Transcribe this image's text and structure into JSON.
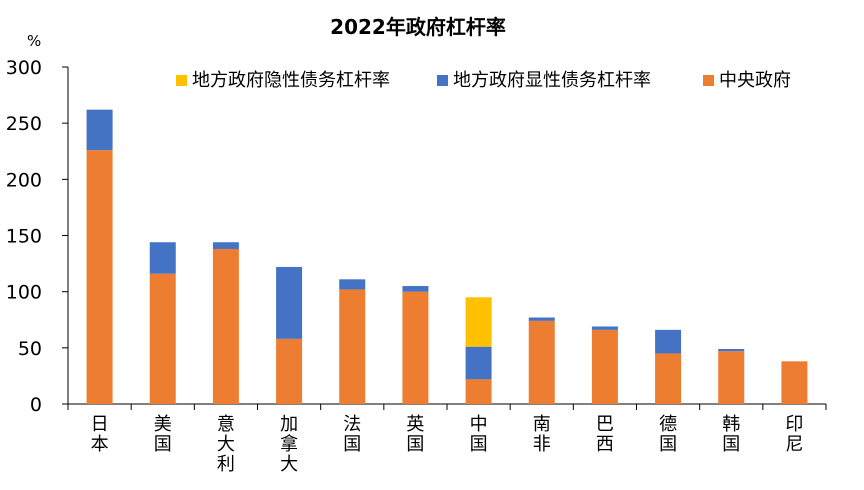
{
  "chart_data": {
    "type": "bar",
    "stacked": true,
    "title": "2022年政府杠杆率",
    "unit_label": "%",
    "ylim": [
      0,
      300
    ],
    "yticks": [
      0,
      50,
      100,
      150,
      200,
      250,
      300
    ],
    "grid": false,
    "legend_position": "top-right",
    "categories": [
      "日本",
      "美国",
      "意大利",
      "加拿大",
      "法国",
      "英国",
      "中国",
      "南非",
      "巴西",
      "德国",
      "韩国",
      "印尼"
    ],
    "series": [
      {
        "name": "中央政府",
        "color": "#ED7D31",
        "values": [
          226,
          116,
          138,
          58,
          102,
          100,
          22,
          74,
          66,
          45,
          47,
          38
        ]
      },
      {
        "name": "地方政府显性债务杠杆率",
        "color": "#4472C4",
        "values": [
          36,
          28,
          6,
          64,
          9,
          5,
          29,
          3,
          3,
          21,
          2,
          0
        ]
      },
      {
        "name": "地方政府隐性债务杠杆率",
        "color": "#FFC000",
        "values": [
          0,
          0,
          0,
          0,
          0,
          0,
          44,
          0,
          0,
          0,
          0,
          0
        ]
      }
    ],
    "legend_order": [
      "地方政府隐性债务杠杆率",
      "地方政府显性债务杠杆率",
      "中央政府"
    ]
  }
}
